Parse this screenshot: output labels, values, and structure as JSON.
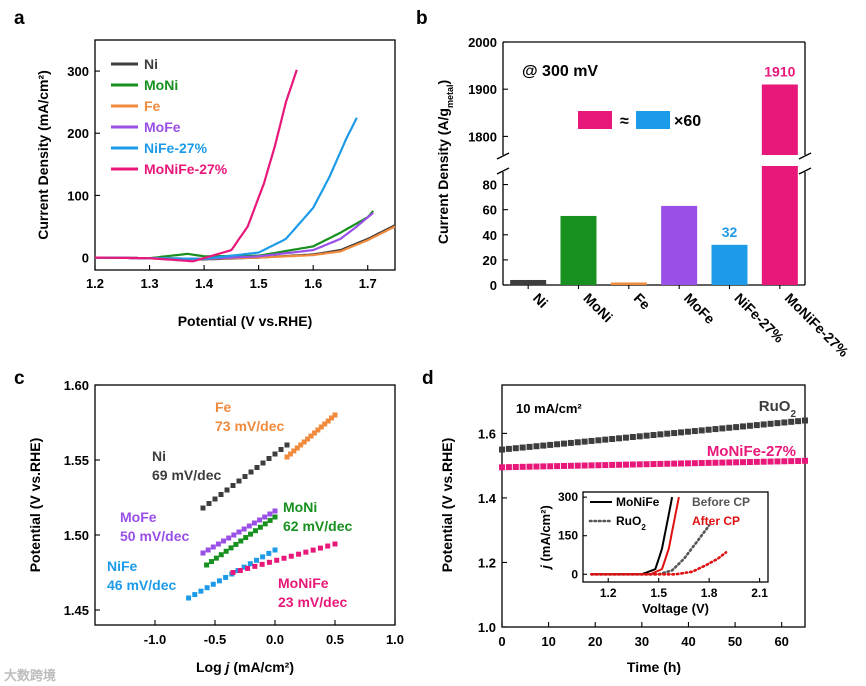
{
  "watermark": "大数跨境",
  "chart_data": [
    {
      "panel": "a",
      "type": "line",
      "xlabel": "Potential (V vs.RHE)",
      "ylabel": "Current Density (mA/cm²)",
      "xlim": [
        1.2,
        1.75
      ],
      "ylim": [
        -20,
        350
      ],
      "xticks": [
        "1.2",
        "1.3",
        "1.4",
        "1.5",
        "1.6",
        "1.7"
      ],
      "yticks": [
        "0",
        "100",
        "200",
        "300"
      ],
      "legend": "top-left",
      "series": [
        {
          "name": "Ni",
          "color": "#3d3d3d",
          "x": [
            1.2,
            1.3,
            1.4,
            1.5,
            1.6,
            1.65,
            1.7,
            1.75
          ],
          "y": [
            0,
            -1,
            -3,
            0,
            5,
            12,
            30,
            52
          ]
        },
        {
          "name": "MoNi",
          "color": "#17901f",
          "x": [
            1.2,
            1.3,
            1.37,
            1.4,
            1.5,
            1.6,
            1.65,
            1.7,
            1.71
          ],
          "y": [
            0,
            -1,
            6,
            2,
            3,
            18,
            40,
            65,
            75
          ]
        },
        {
          "name": "Fe",
          "color": "#f08a3c",
          "x": [
            1.2,
            1.3,
            1.4,
            1.5,
            1.6,
            1.65,
            1.7,
            1.75
          ],
          "y": [
            0,
            -1,
            -2,
            0,
            4,
            10,
            28,
            50
          ]
        },
        {
          "name": "MoFe",
          "color": "#9a4fe6",
          "x": [
            1.2,
            1.3,
            1.4,
            1.5,
            1.6,
            1.65,
            1.68,
            1.71
          ],
          "y": [
            0,
            -1,
            -2,
            2,
            12,
            30,
            50,
            72
          ]
        },
        {
          "name": "NiFe-27%",
          "color": "#1e9be8",
          "x": [
            1.2,
            1.3,
            1.4,
            1.5,
            1.55,
            1.6,
            1.63,
            1.66,
            1.68
          ],
          "y": [
            0,
            -1,
            -2,
            8,
            30,
            80,
            130,
            190,
            225
          ]
        },
        {
          "name": "MoNiFe-27%",
          "color": "#e8187a",
          "x": [
            1.2,
            1.3,
            1.38,
            1.45,
            1.48,
            1.51,
            1.53,
            1.55,
            1.57
          ],
          "y": [
            0,
            -1,
            -6,
            12,
            50,
            120,
            180,
            250,
            302
          ]
        }
      ]
    },
    {
      "panel": "b",
      "type": "bar",
      "title": "@ 300 mV",
      "ylabel": "Current Density (A/gmetal)",
      "ylabel_main": "Current Density (A/g",
      "ylabel_sub": "metal",
      "ylabel_close": ")",
      "categories": [
        "Ni",
        "MoNi",
        "Fe",
        "MoFe",
        "NiFe-27%",
        "MoNiFe-27%"
      ],
      "values": [
        4,
        55,
        2,
        63,
        32,
        1910
      ],
      "colors": [
        "#3d3d3d",
        "#17901f",
        "#f08a3c",
        "#9a4fe6",
        "#1e9be8",
        "#e8187a"
      ],
      "data_labels": {
        "NiFe-27%": "32",
        "MoNiFe-27%": "1910"
      },
      "ylim_lower": [
        0,
        90
      ],
      "ylim_upper": [
        1750,
        2000
      ],
      "yticks_lower": [
        "0",
        "20",
        "40",
        "60",
        "80"
      ],
      "yticks_upper": [
        "1800",
        "1900",
        "2000"
      ],
      "annotation": {
        "approx": "≈",
        "times": "×60"
      }
    },
    {
      "panel": "c",
      "type": "scatter",
      "xlabel_main": "Log ",
      "xlabel_j": "j",
      "xlabel_rest": " (mA/cm²)",
      "ylabel": "Potential (V vs.RHE)",
      "xlim": [
        -1.5,
        1.0
      ],
      "ylim": [
        1.44,
        1.6
      ],
      "xticks": [
        "-1.0",
        "-0.5",
        "0.0",
        "0.5",
        "1.0"
      ],
      "yticks": [
        "1.45",
        "1.50",
        "1.55",
        "1.60"
      ],
      "series": [
        {
          "name": "Fe",
          "label": "73 mV/dec",
          "color": "#f08a3c",
          "x": [
            0.1,
            0.5
          ],
          "y": [
            1.552,
            1.58
          ]
        },
        {
          "name": "Ni",
          "label": "69 mV/dec",
          "color": "#3d3d3d",
          "x": [
            -0.6,
            0.1
          ],
          "y": [
            1.518,
            1.56
          ]
        },
        {
          "name": "MoFe",
          "label": "50 mV/dec",
          "color": "#9a4fe6",
          "x": [
            -0.6,
            0.0
          ],
          "y": [
            1.488,
            1.516
          ]
        },
        {
          "name": "MoNi",
          "label": "62 mV/dec",
          "color": "#17901f",
          "x": [
            -0.57,
            0.0
          ],
          "y": [
            1.48,
            1.512
          ]
        },
        {
          "name": "NiFe",
          "label": "46 mV/dec",
          "color": "#1e9be8",
          "x": [
            -0.72,
            0.0
          ],
          "y": [
            1.458,
            1.49
          ]
        },
        {
          "name": "MoNiFe",
          "label": "23 mV/dec",
          "color": "#e8187a",
          "x": [
            -0.35,
            0.5
          ],
          "y": [
            1.475,
            1.494
          ]
        }
      ]
    },
    {
      "panel": "d",
      "type": "scatter",
      "title": "10 mA/cm²",
      "xlabel": "Time (h)",
      "ylabel": "Potential (V vs.RHE)",
      "xlim": [
        0,
        65
      ],
      "ylim": [
        1.0,
        1.75
      ],
      "xticks": [
        "0",
        "10",
        "20",
        "30",
        "40",
        "50",
        "60"
      ],
      "yticks": [
        "1.0",
        "1.2",
        "1.4",
        "1.6"
      ],
      "series": [
        {
          "name": "RuO2",
          "color": "#3d3d3d",
          "x": [
            0,
            65
          ],
          "y": [
            1.55,
            1.64
          ]
        },
        {
          "name": "MoNiFe-27%",
          "color": "#e8187a",
          "x": [
            0,
            65
          ],
          "y": [
            1.495,
            1.515
          ]
        }
      ],
      "labels": {
        "RuO2_main": "RuO",
        "RuO2_sub": "2",
        "MoNiFe": "MoNiFe-27%"
      },
      "inset": {
        "xlabel": "Voltage (V)",
        "ylabel_j": "j",
        "ylabel_rest": " (mA/cm²)",
        "xlim": [
          1.05,
          2.15
        ],
        "ylim": [
          -30,
          320
        ],
        "xticks": [
          "1.2",
          "1.5",
          "1.8",
          "2.1"
        ],
        "yticks": [
          "0",
          "150",
          "300"
        ],
        "legend": {
          "solid": "MoNiFe",
          "dotted_main": "RuO",
          "dotted_sub": "2",
          "before": "Before CP",
          "after": "After CP"
        },
        "series": [
          {
            "name": "MoNiFe Before CP",
            "style": "solid",
            "color": "#000000",
            "x": [
              1.1,
              1.4,
              1.48,
              1.52,
              1.55,
              1.58
            ],
            "y": [
              0,
              0,
              20,
              100,
              200,
              300
            ]
          },
          {
            "name": "MoNiFe After CP",
            "style": "solid",
            "color": "#e01010",
            "x": [
              1.1,
              1.45,
              1.52,
              1.56,
              1.59,
              1.62
            ],
            "y": [
              0,
              0,
              20,
              100,
              200,
              300
            ]
          },
          {
            "name": "RuO2 Before CP",
            "style": "dotted",
            "color": "#555555",
            "x": [
              1.1,
              1.5,
              1.58,
              1.65,
              1.72,
              1.8
            ],
            "y": [
              0,
              0,
              15,
              60,
              120,
              190
            ]
          },
          {
            "name": "RuO2 After CP",
            "style": "dotted",
            "color": "#e01010",
            "x": [
              1.1,
              1.6,
              1.7,
              1.78,
              1.85,
              1.9
            ],
            "y": [
              0,
              0,
              10,
              35,
              60,
              85
            ]
          }
        ]
      }
    }
  ]
}
